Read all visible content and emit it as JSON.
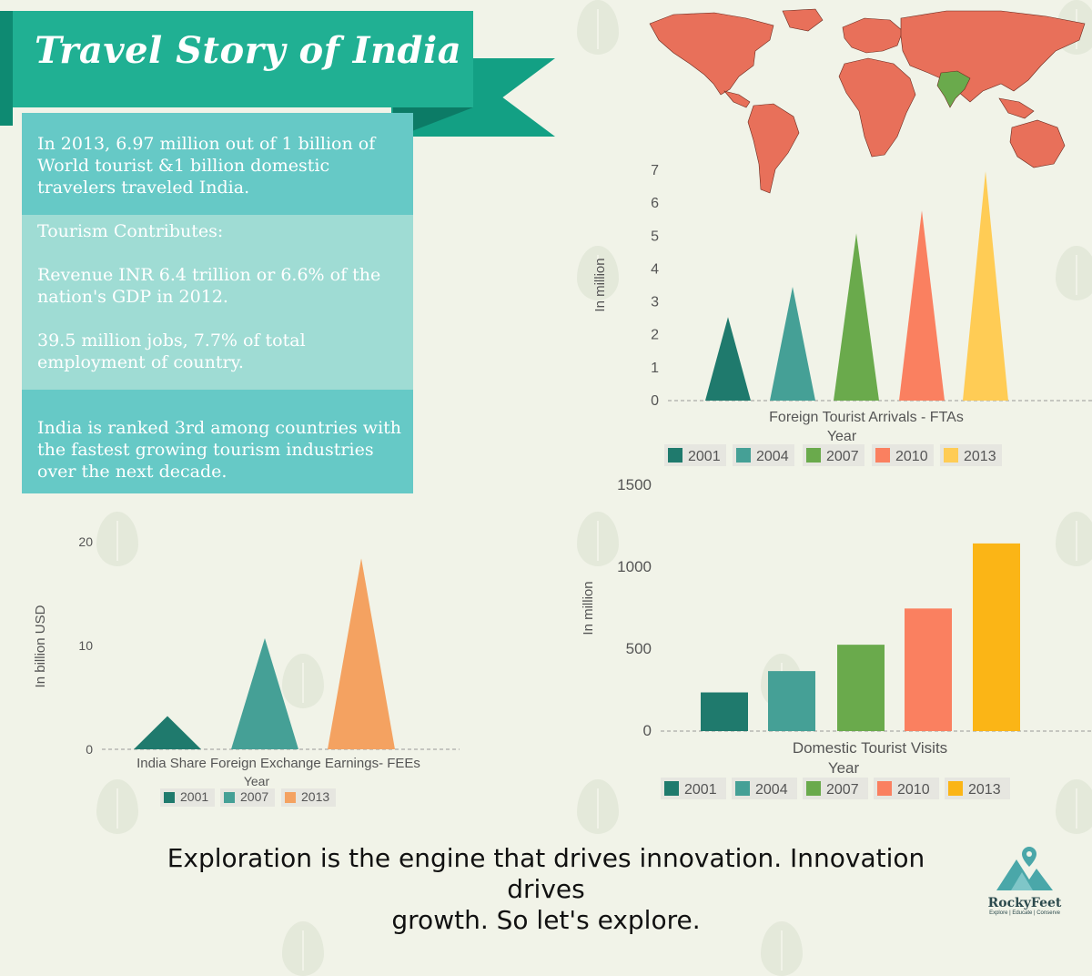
{
  "header": {
    "title": "Travel Story of India"
  },
  "info": {
    "fact1": "In 2013, 6.97 million out of 1 billion of World tourist &1 billion domestic travelers traveled India.",
    "contributes_label": "Tourism Contributes:",
    "fact2": "Revenue INR 6.4 trillion or 6.6% of the nation's GDP in 2012.",
    "fact3": "39.5 million jobs, 7.7% of total employment of country.",
    "fact4": "India is ranked 3rd among countries with the fastest growing tourism industries over the next decade."
  },
  "footer": {
    "quote_line1": "Exploration is the engine that drives innovation. Innovation drives",
    "quote_line2": "growth. So let's explore.",
    "logo_name": "RockyFeet",
    "logo_tagline": "Explore | Educate | Conserve"
  },
  "colors": {
    "map_land": "#e8705a",
    "map_india": "#6aaa4c",
    "box_band": "#66c9c6",
    "box_fill": "#9fdcd4",
    "ribbon": "#20b093"
  },
  "chart_data": [
    {
      "id": "fta",
      "type": "bar",
      "mark": "triangle",
      "title": "Foreign Tourist Arrivals - FTAs",
      "xlabel": "Year",
      "ylabel": "In million",
      "categories": [
        "2001",
        "2004",
        "2007",
        "2010",
        "2013"
      ],
      "values": [
        2.54,
        3.46,
        5.08,
        5.78,
        6.97
      ],
      "colors": [
        "#1f7a6d",
        "#45a096",
        "#6aaa4c",
        "#fa8060",
        "#ffcc55"
      ],
      "ylim": [
        0,
        7
      ],
      "yticks": [
        "0",
        "1",
        "2",
        "3",
        "4",
        "5",
        "6",
        "7"
      ],
      "legend": "bottom"
    },
    {
      "id": "fee",
      "type": "bar",
      "mark": "triangle",
      "title": "India Share Foreign Exchange Earnings- FEEs",
      "xlabel": "Year",
      "ylabel": "In billion USD",
      "categories": [
        "2001",
        "2007",
        "2013"
      ],
      "values": [
        3.2,
        10.7,
        18.4
      ],
      "colors": [
        "#1f7a6d",
        "#45a096",
        "#f4a261"
      ],
      "ylim": [
        0,
        20
      ],
      "yticks": [
        "0",
        "10",
        "20"
      ],
      "legend": "bottom"
    },
    {
      "id": "dtv",
      "type": "bar",
      "title": "Domestic Tourist Visits",
      "xlabel": "Year",
      "ylabel": "In million",
      "categories": [
        "2001",
        "2004",
        "2007",
        "2010",
        "2013"
      ],
      "values": [
        236,
        366,
        527,
        748,
        1145
      ],
      "colors": [
        "#1f7a6d",
        "#45a096",
        "#6aaa4c",
        "#fa8060",
        "#fbb516"
      ],
      "ylim": [
        0,
        1500
      ],
      "yticks": [
        "0",
        "500",
        "1000",
        "1500"
      ],
      "legend": "bottom"
    }
  ]
}
